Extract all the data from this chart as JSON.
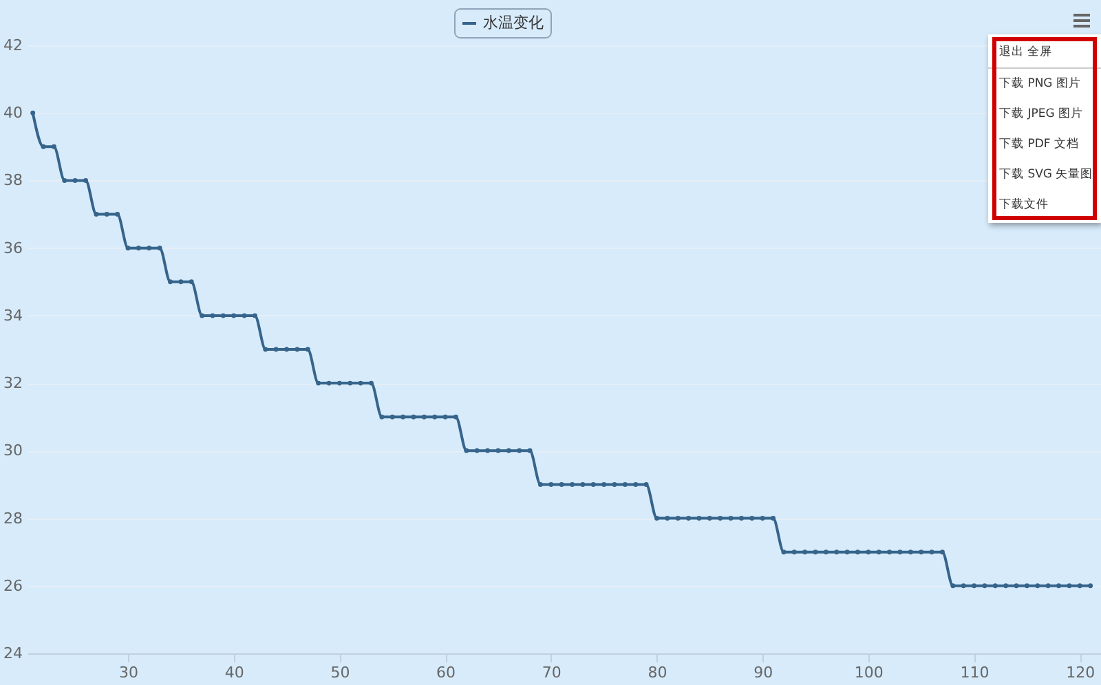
{
  "chart_data": {
    "type": "line",
    "x": [
      21,
      22,
      23,
      24,
      25,
      26,
      27,
      28,
      29,
      30,
      31,
      32,
      33,
      34,
      35,
      36,
      37,
      38,
      39,
      40,
      41,
      42,
      43,
      44,
      45,
      46,
      47,
      48,
      49,
      50,
      51,
      52,
      53,
      54,
      55,
      56,
      57,
      58,
      59,
      60,
      61,
      62,
      63,
      64,
      65,
      66,
      67,
      68,
      69,
      70,
      71,
      72,
      73,
      74,
      75,
      76,
      77,
      78,
      79,
      80,
      81,
      82,
      83,
      84,
      85,
      86,
      87,
      88,
      89,
      90,
      91,
      92,
      93,
      94,
      95,
      96,
      97,
      98,
      99,
      100,
      101,
      102,
      103,
      104,
      105,
      106,
      107,
      108,
      109,
      110,
      111,
      112,
      113,
      114,
      115,
      116,
      117,
      118,
      119,
      120,
      121
    ],
    "series": [
      {
        "name": "水温变化",
        "color": "#36648b",
        "values": [
          40,
          39,
          39,
          38,
          38,
          38,
          37,
          37,
          37,
          36,
          36,
          36,
          36,
          35,
          35,
          35,
          34,
          34,
          34,
          34,
          34,
          34,
          33,
          33,
          33,
          33,
          33,
          32,
          32,
          32,
          32,
          32,
          32,
          31,
          31,
          31,
          31,
          31,
          31,
          31,
          31,
          30,
          30,
          30,
          30,
          30,
          30,
          30,
          29,
          29,
          29,
          29,
          29,
          29,
          29,
          29,
          29,
          29,
          29,
          28,
          28,
          28,
          28,
          28,
          28,
          28,
          28,
          28,
          28,
          28,
          28,
          27,
          27,
          27,
          27,
          27,
          27,
          27,
          27,
          27,
          27,
          27,
          27,
          27,
          27,
          27,
          27,
          26,
          26,
          26,
          26,
          26,
          26,
          26,
          26,
          26,
          26,
          26,
          26,
          26,
          26
        ]
      }
    ],
    "xlim": [
      20.5,
      122
    ],
    "xticks": [
      30,
      40,
      50,
      60,
      70,
      80,
      90,
      100,
      110,
      120
    ],
    "ylim": [
      24,
      42
    ],
    "yticks": [
      24,
      26,
      28,
      30,
      32,
      34,
      36,
      38,
      40,
      42
    ],
    "grid": "y",
    "legend": "top",
    "marker": "circle",
    "line_style": "solid",
    "annotations": [
      "退出 全屏",
      "下载 PNG 图片",
      "下载 JPEG 图片",
      "下载 PDF 文档",
      "下载 SVG 矢量图",
      "下载文件"
    ]
  }
}
